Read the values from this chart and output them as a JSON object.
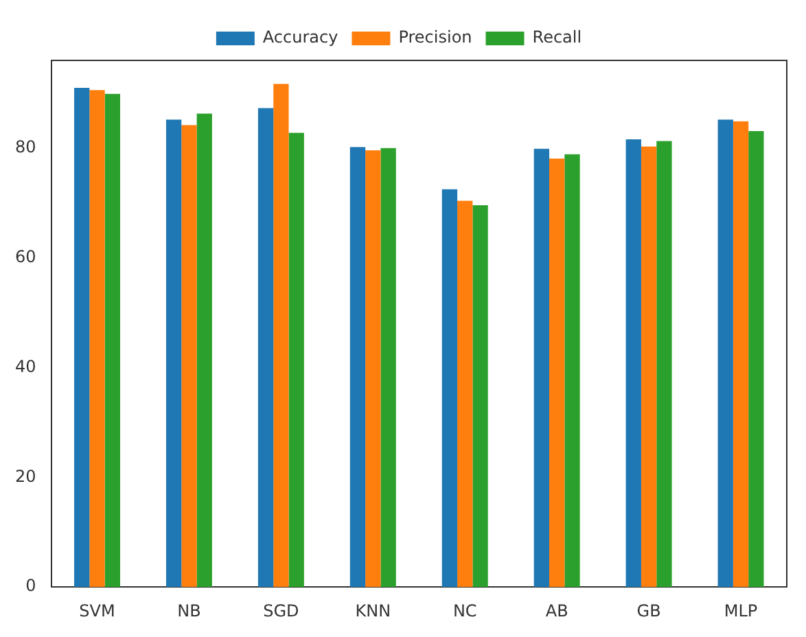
{
  "chart_data": {
    "type": "bar",
    "categories": [
      "SVM",
      "NB",
      "SGD",
      "KNN",
      "NC",
      "AB",
      "GB",
      "MLP"
    ],
    "series": [
      {
        "name": "Accuracy",
        "color": "#1f77b4",
        "values": [
          91.0,
          85.2,
          87.3,
          80.2,
          72.5,
          79.9,
          81.6,
          85.2
        ]
      },
      {
        "name": "Precision",
        "color": "#ff7f0e",
        "values": [
          90.6,
          84.2,
          91.7,
          79.6,
          70.4,
          78.1,
          80.3,
          84.9
        ]
      },
      {
        "name": "Recall",
        "color": "#2ca02c",
        "values": [
          89.9,
          86.3,
          82.8,
          80.0,
          69.6,
          78.9,
          81.3,
          83.1
        ]
      }
    ],
    "ylim": [
      0,
      96
    ],
    "yticks": [
      0,
      20,
      40,
      60,
      80
    ],
    "grid": false,
    "legend": "top"
  }
}
